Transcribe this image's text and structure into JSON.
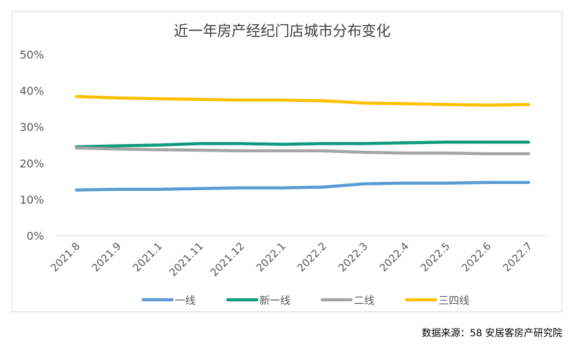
{
  "chart_data": {
    "type": "line",
    "title": "近一年房产经纪门店城市分布变化",
    "categories": [
      "2021.8",
      "2021.9",
      "2021.1",
      "2021.11",
      "2021.12",
      "2022.1",
      "2022.2",
      "2022.3",
      "2022.4",
      "2022.5",
      "2022.6",
      "2022.7"
    ],
    "y_ticks": [
      "0%",
      "10%",
      "20%",
      "30%",
      "40%",
      "50%"
    ],
    "ylim": [
      0,
      50
    ],
    "grid": false,
    "legend_position": "bottom",
    "series": [
      {
        "name": "一线",
        "color": "#5b9bd5",
        "values": [
          12.6,
          12.8,
          12.8,
          13.0,
          13.2,
          13.2,
          13.4,
          14.3,
          14.5,
          14.5,
          14.7,
          14.7
        ]
      },
      {
        "name": "新一线",
        "color": "#0f9a7f",
        "values": [
          24.5,
          24.8,
          25.0,
          25.4,
          25.4,
          25.2,
          25.4,
          25.4,
          25.6,
          25.8,
          25.8,
          25.8
        ]
      },
      {
        "name": "二线",
        "color": "#a5a5a5",
        "values": [
          24.2,
          23.9,
          23.7,
          23.6,
          23.4,
          23.4,
          23.4,
          23.0,
          22.8,
          22.8,
          22.6,
          22.6
        ]
      },
      {
        "name": "三四线",
        "color": "#ffc000",
        "values": [
          38.4,
          38.0,
          37.8,
          37.6,
          37.4,
          37.4,
          37.2,
          36.6,
          36.4,
          36.2,
          36.0,
          36.2
        ]
      }
    ]
  },
  "source": "数据来源：58 安居客房产研究院"
}
